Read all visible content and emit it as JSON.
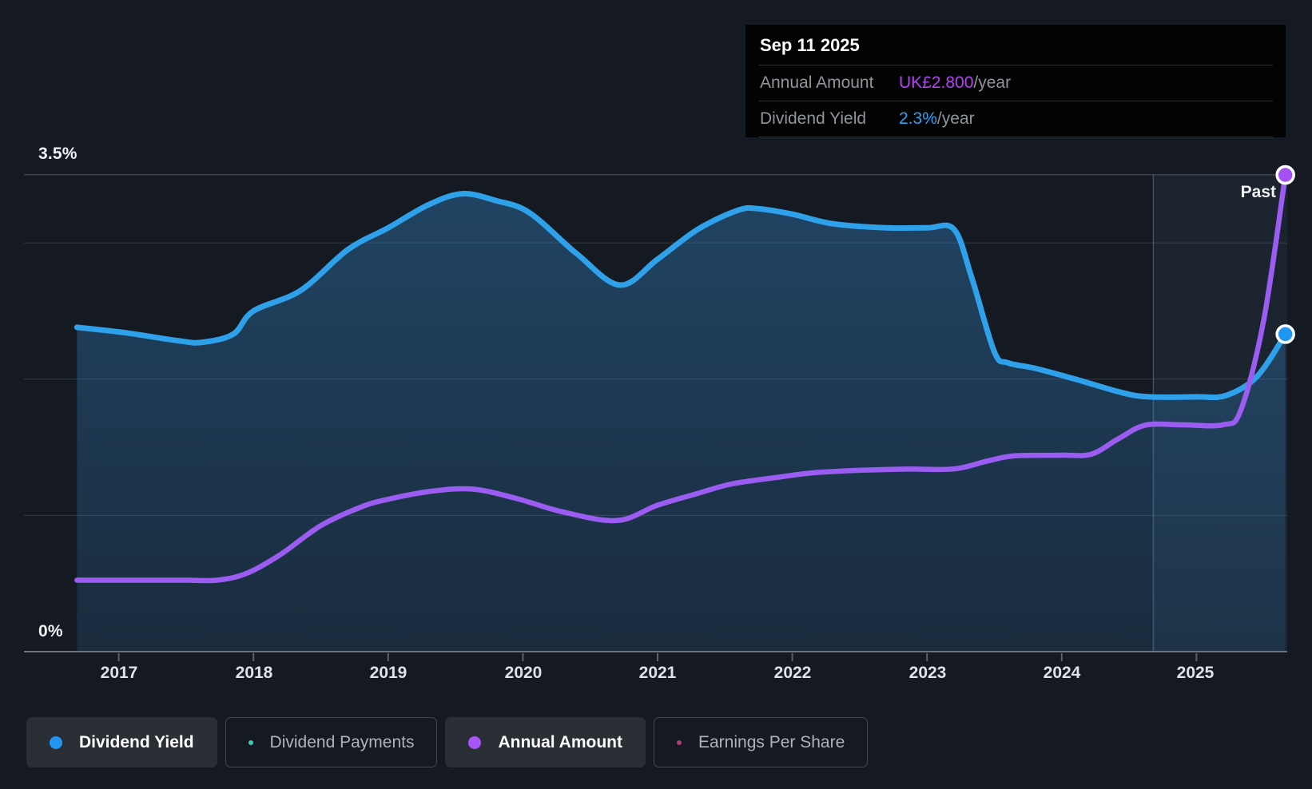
{
  "tooltip": {
    "date": "Sep 11 2025",
    "rows": [
      {
        "label": "Annual Amount",
        "value": "UK£2.800",
        "suffix": "/year"
      },
      {
        "label": "Dividend Yield",
        "value": "2.3%",
        "suffix": "/year"
      }
    ]
  },
  "past_label": "Past",
  "axis": {
    "y_top_label": "3.5%",
    "y_bottom_label": "0%",
    "x_labels": [
      "2017",
      "2018",
      "2019",
      "2020",
      "2021",
      "2022",
      "2023",
      "2024",
      "2025"
    ]
  },
  "legend": [
    {
      "label": "Dividend Yield",
      "marker": "dot",
      "color": "#2196f3",
      "selected": true
    },
    {
      "label": "Dividend Payments",
      "marker": "ring",
      "color": "#3ec9bb",
      "selected": false
    },
    {
      "label": "Annual Amount",
      "marker": "dot",
      "color": "#a855f7",
      "selected": true
    },
    {
      "label": "Earnings Per Share",
      "marker": "ring",
      "color": "#b13c76",
      "selected": false
    }
  ],
  "colors": {
    "background": "#151a22",
    "dividend_yield_line": "#2fa1ea",
    "annual_amount_line": "#9b5cf2",
    "yield_marker_fill": "#2196f3",
    "amount_marker_fill": "#a550f5",
    "tooltip_annual_amount_value": "#b342f5",
    "tooltip_dividend_yield_value": "#2aa3f0",
    "area_fill_rgb": "52,142,215",
    "past_band_fill": "rgba(127,183,235,0.06)",
    "gridline": "#333a44",
    "gridline_top": "#4d545e",
    "axis_line": "#6d7278"
  },
  "chart_data": {
    "type": "area",
    "title": "Dividend history (yield and annual amount over time)",
    "x_axis": {
      "unit": "year",
      "range": [
        2016.69,
        2025.69
      ],
      "ticks": [
        2017,
        2018,
        2019,
        2020,
        2021,
        2022,
        2023,
        2024,
        2025
      ]
    },
    "y_axis_yield": {
      "unit": "%",
      "range": [
        0,
        3.5
      ],
      "labeled_ticks": [
        "3.5%",
        "0%"
      ],
      "gridlines": [
        1,
        2,
        3,
        3.5
      ]
    },
    "y_axis_amount": {
      "unit": "UK£/year",
      "aligned_zero": true
    },
    "past_divider_year": 2024.68,
    "legend_position": "bottom",
    "grid": true,
    "series": [
      {
        "name": "Dividend Yield",
        "unit": "%",
        "style": "line-with-area",
        "points": [
          [
            2016.69,
            2.38
          ],
          [
            2017.05,
            2.34
          ],
          [
            2017.45,
            2.28
          ],
          [
            2017.62,
            2.27
          ],
          [
            2017.85,
            2.33
          ],
          [
            2018.0,
            2.5
          ],
          [
            2018.35,
            2.65
          ],
          [
            2018.7,
            2.95
          ],
          [
            2019.0,
            3.11
          ],
          [
            2019.3,
            3.28
          ],
          [
            2019.55,
            3.36
          ],
          [
            2019.8,
            3.31
          ],
          [
            2020.05,
            3.22
          ],
          [
            2020.4,
            2.92
          ],
          [
            2020.72,
            2.69
          ],
          [
            2021.0,
            2.88
          ],
          [
            2021.3,
            3.1
          ],
          [
            2021.6,
            3.24
          ],
          [
            2021.75,
            3.25
          ],
          [
            2022.0,
            3.21
          ],
          [
            2022.3,
            3.14
          ],
          [
            2022.7,
            3.11
          ],
          [
            2023.0,
            3.11
          ],
          [
            2023.2,
            3.1
          ],
          [
            2023.33,
            2.75
          ],
          [
            2023.5,
            2.2
          ],
          [
            2023.6,
            2.12
          ],
          [
            2023.8,
            2.08
          ],
          [
            2024.1,
            2.0
          ],
          [
            2024.45,
            1.9
          ],
          [
            2024.65,
            1.87
          ],
          [
            2025.0,
            1.87
          ],
          [
            2025.22,
            1.88
          ],
          [
            2025.45,
            2.02
          ],
          [
            2025.66,
            2.33
          ]
        ]
      },
      {
        "name": "Annual Amount",
        "unit": "UK£",
        "style": "line",
        "points": [
          [
            2016.69,
            0.42
          ],
          [
            2017.1,
            0.42
          ],
          [
            2017.5,
            0.42
          ],
          [
            2017.73,
            0.42
          ],
          [
            2017.95,
            0.46
          ],
          [
            2018.2,
            0.57
          ],
          [
            2018.5,
            0.74
          ],
          [
            2018.8,
            0.85
          ],
          [
            2019.0,
            0.895
          ],
          [
            2019.3,
            0.94
          ],
          [
            2019.62,
            0.955
          ],
          [
            2019.95,
            0.9
          ],
          [
            2020.3,
            0.82
          ],
          [
            2020.7,
            0.77
          ],
          [
            2021.0,
            0.86
          ],
          [
            2021.3,
            0.93
          ],
          [
            2021.55,
            0.985
          ],
          [
            2021.9,
            1.025
          ],
          [
            2022.15,
            1.05
          ],
          [
            2022.5,
            1.065
          ],
          [
            2022.85,
            1.072
          ],
          [
            2023.2,
            1.073
          ],
          [
            2023.45,
            1.12
          ],
          [
            2023.65,
            1.15
          ],
          [
            2024.0,
            1.154
          ],
          [
            2024.22,
            1.16
          ],
          [
            2024.42,
            1.25
          ],
          [
            2024.62,
            1.33
          ],
          [
            2024.9,
            1.332
          ],
          [
            2025.2,
            1.333
          ],
          [
            2025.33,
            1.42
          ],
          [
            2025.5,
            1.95
          ],
          [
            2025.66,
            2.8
          ]
        ]
      }
    ],
    "current": {
      "date": "Sep 11 2025",
      "annual_amount": "UK£2.800/year",
      "dividend_yield": "2.3%/year"
    }
  }
}
